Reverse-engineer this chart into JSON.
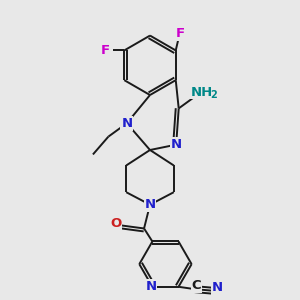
{
  "bg": "#e8e8e8",
  "bond_color": "#1a1a1a",
  "bw": 1.4,
  "N_color": "#2020cc",
  "O_color": "#cc2020",
  "F_color": "#cc00cc",
  "NH2_color": "#008888",
  "C_color": "#1a1a1a",
  "fs": 9.5,
  "fs_sub": 7.0,
  "xlim": [
    0,
    10
  ],
  "ylim": [
    0,
    10
  ]
}
